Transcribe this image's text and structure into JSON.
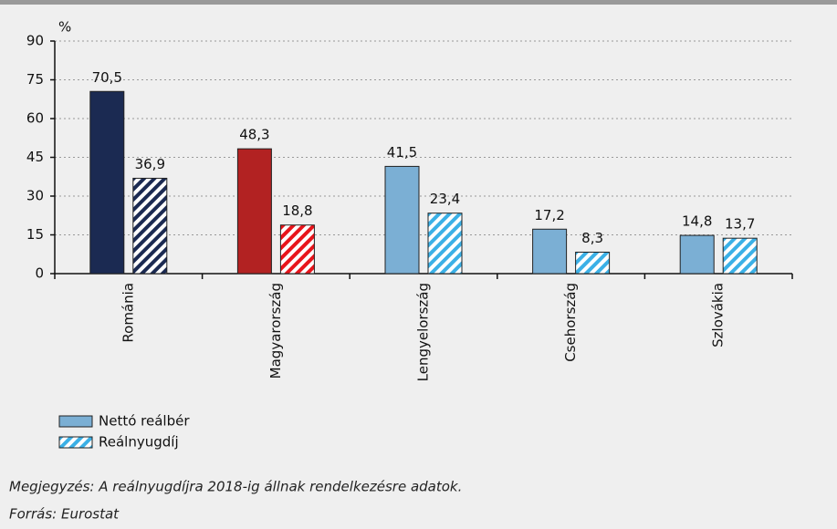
{
  "chart_data": {
    "type": "bar",
    "y_unit": "%",
    "categories": [
      "Románia",
      "Magyarország",
      "Lengyelország",
      "Csehország",
      "Szlovákia"
    ],
    "series": [
      {
        "name": "Nettó reálbér",
        "color": "#7bafd4",
        "style": "solid",
        "point_colors": [
          "#1b2a52",
          "#b22222",
          "#7bafd4",
          "#7bafd4",
          "#7bafd4"
        ],
        "values": [
          70.5,
          48.3,
          41.5,
          17.2,
          14.8
        ],
        "value_labels": [
          "70,5",
          "48,3",
          "41,5",
          "17,2",
          "14,8"
        ]
      },
      {
        "name": "Reálnyugdíj",
        "color": "#3bb0e6",
        "style": "hatched",
        "point_colors": [
          "#1b2a52",
          "#e8141b",
          "#3bb0e6",
          "#3bb0e6",
          "#3bb0e6"
        ],
        "values": [
          36.9,
          18.8,
          23.4,
          8.3,
          13.7
        ],
        "value_labels": [
          "36,9",
          "18,8",
          "23,4",
          "8,3",
          "13,7"
        ]
      }
    ],
    "ylim": [
      0,
      90
    ],
    "yticks": [
      0,
      15,
      30,
      45,
      60,
      75,
      90
    ],
    "grid": true,
    "note": "Megjegyzés: A reálnyugdíjra 2018-ig állnak rendelkezésre adatok.",
    "source": "Forrás: Eurostat"
  }
}
